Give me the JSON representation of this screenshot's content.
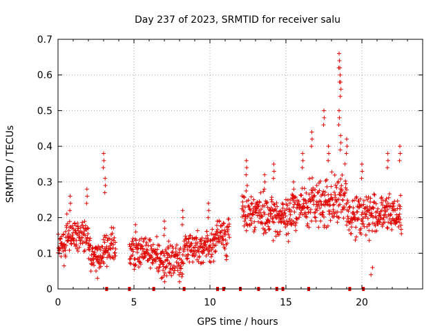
{
  "chart_data": {
    "type": "scatter",
    "title": "Day 237 of 2023, SRMTID for receiver salu",
    "xlabel": "GPS time / hours",
    "ylabel": "SRMTID / TECUs",
    "xlim": [
      0,
      24
    ],
    "ylim": [
      0,
      0.7
    ],
    "x_ticks": [
      0,
      5,
      10,
      15,
      20
    ],
    "x_tick_labels": [
      "0",
      "5",
      "10",
      "15",
      "20"
    ],
    "y_ticks": [
      0,
      0.1,
      0.2,
      0.3,
      0.4,
      0.5,
      0.6,
      0.7
    ],
    "y_tick_labels": [
      "0",
      "0.1",
      "0.2",
      "0.3",
      "0.4",
      "0.5",
      "0.6",
      "0.7"
    ],
    "grid": true,
    "marker": "+",
    "color": "#e00000",
    "series_name": "SRMTID",
    "profile": [
      {
        "start": 0.0,
        "end": 0.5,
        "mean": 0.12,
        "spread": 0.04
      },
      {
        "start": 0.5,
        "end": 1.0,
        "mean": 0.15,
        "spread": 0.05
      },
      {
        "start": 1.0,
        "end": 2.0,
        "mean": 0.15,
        "spread": 0.04
      },
      {
        "start": 2.0,
        "end": 3.0,
        "mean": 0.09,
        "spread": 0.04
      },
      {
        "start": 3.0,
        "end": 3.8,
        "mean": 0.12,
        "spread": 0.05
      },
      {
        "start": 4.7,
        "end": 6.5,
        "mean": 0.1,
        "spread": 0.04
      },
      {
        "start": 6.5,
        "end": 8.3,
        "mean": 0.08,
        "spread": 0.04
      },
      {
        "start": 8.3,
        "end": 10.3,
        "mean": 0.12,
        "spread": 0.04
      },
      {
        "start": 10.3,
        "end": 11.3,
        "mean": 0.15,
        "spread": 0.05
      },
      {
        "start": 12.1,
        "end": 13.3,
        "mean": 0.22,
        "spread": 0.05
      },
      {
        "start": 13.3,
        "end": 15.4,
        "mean": 0.2,
        "spread": 0.05
      },
      {
        "start": 15.4,
        "end": 16.5,
        "mean": 0.23,
        "spread": 0.05
      },
      {
        "start": 16.5,
        "end": 17.6,
        "mean": 0.24,
        "spread": 0.06
      },
      {
        "start": 17.6,
        "end": 19.0,
        "mean": 0.25,
        "spread": 0.07
      },
      {
        "start": 19.0,
        "end": 20.5,
        "mean": 0.21,
        "spread": 0.06
      },
      {
        "start": 20.5,
        "end": 22.6,
        "mean": 0.21,
        "spread": 0.05
      }
    ],
    "peaks": [
      {
        "x": 0.8,
        "y": 0.26
      },
      {
        "x": 1.9,
        "y": 0.28
      },
      {
        "x": 3.0,
        "y": 0.38
      },
      {
        "x": 3.1,
        "y": 0.31
      },
      {
        "x": 5.1,
        "y": 0.18
      },
      {
        "x": 7.0,
        "y": 0.19
      },
      {
        "x": 8.2,
        "y": 0.22
      },
      {
        "x": 9.9,
        "y": 0.24
      },
      {
        "x": 12.4,
        "y": 0.36
      },
      {
        "x": 13.6,
        "y": 0.32
      },
      {
        "x": 14.2,
        "y": 0.35
      },
      {
        "x": 15.5,
        "y": 0.3
      },
      {
        "x": 16.1,
        "y": 0.38
      },
      {
        "x": 16.7,
        "y": 0.44
      },
      {
        "x": 17.5,
        "y": 0.5
      },
      {
        "x": 17.8,
        "y": 0.4
      },
      {
        "x": 18.5,
        "y": 0.66
      },
      {
        "x": 18.55,
        "y": 0.62
      },
      {
        "x": 18.6,
        "y": 0.58
      },
      {
        "x": 18.5,
        "y": 0.5
      },
      {
        "x": 18.6,
        "y": 0.43
      },
      {
        "x": 19.0,
        "y": 0.42
      },
      {
        "x": 20.0,
        "y": 0.35
      },
      {
        "x": 21.7,
        "y": 0.38
      },
      {
        "x": 22.5,
        "y": 0.4
      }
    ],
    "lows": [
      {
        "x": 2.6,
        "y": 0.03
      },
      {
        "x": 6.8,
        "y": 0.03
      },
      {
        "x": 8.0,
        "y": 0.02
      },
      {
        "x": 20.6,
        "y": 0.04
      },
      {
        "x": 20.7,
        "y": 0.06
      }
    ],
    "gap_markers_x": [
      3.2,
      4.7,
      6.3,
      8.3,
      10.5,
      10.9,
      12.0,
      13.2,
      14.4,
      14.8,
      16.5,
      19.2,
      20.1
    ]
  }
}
